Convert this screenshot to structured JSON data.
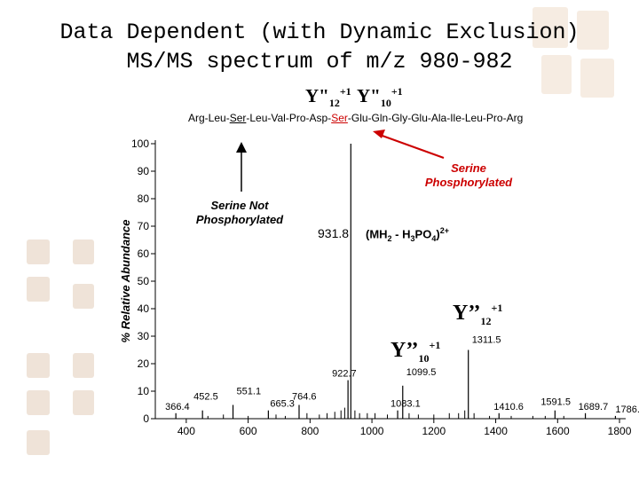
{
  "title_line1": "Data Dependent (with Dynamic Exclusion)",
  "title_line2": "MS/MS spectrum of m/z 980-982",
  "header_ions": {
    "y12": {
      "base": "Y\"",
      "sub": "12",
      "sup": "+1"
    },
    "y10": {
      "base": "Y\"",
      "sub": "10",
      "sup": "+1"
    }
  },
  "sequence": {
    "part1": "Arg-Leu-",
    "ser1": "Ser",
    "part2": "-Leu-Val-Pro-Asp-",
    "ser2": "Ser",
    "part3": "-Glu-Gln-Gly-Glu-Ala-Ile-Leu-Pro-Arg"
  },
  "annotations": {
    "not_phospho": "Serine Not Phosphorylated",
    "phospho": "Serine Phosphorylated",
    "precursor_value": "931.8",
    "precursor_formula": {
      "prefix": "(MH",
      "sub1": "2",
      "mid": " - H",
      "sub2": "3",
      "mid2": "PO",
      "sub3": "4",
      "suffix": ")",
      "sup": "2+"
    },
    "y12_label": {
      "base": "Y’’",
      "sub": "12",
      "sup": "+1"
    },
    "y10_label": {
      "base": "Y’’",
      "sub": "10",
      "sup": "+1"
    }
  },
  "colors": {
    "highlight": "#cc0000",
    "peaks": "#000000"
  },
  "chart_data": {
    "type": "bar",
    "title": "Data Dependent (with Dynamic Exclusion) MS/MS spectrum of m/z 980-982",
    "xlabel": "",
    "ylabel": "% Relative Abundance",
    "xlim": [
      300,
      1820
    ],
    "ylim": [
      0,
      100
    ],
    "xticks": [
      400,
      600,
      800,
      1000,
      1200,
      1400,
      1600,
      1800
    ],
    "yticks": [
      0,
      10,
      20,
      30,
      40,
      50,
      60,
      70,
      80,
      90,
      100
    ],
    "peaks": [
      {
        "mz": 366.4,
        "intensity": 2,
        "label": "366.4"
      },
      {
        "mz": 452.5,
        "intensity": 3,
        "label": "452.5"
      },
      {
        "mz": 551.1,
        "intensity": 5,
        "label": "551.1"
      },
      {
        "mz": 665.3,
        "intensity": 3,
        "label": "665.3"
      },
      {
        "mz": 764.6,
        "intensity": 5,
        "label": "764.6"
      },
      {
        "mz": 922.7,
        "intensity": 14,
        "label": "922.7"
      },
      {
        "mz": 931.8,
        "intensity": 100,
        "label": "931.8"
      },
      {
        "mz": 1083.1,
        "intensity": 3,
        "label": "1083.1"
      },
      {
        "mz": 1099.5,
        "intensity": 12,
        "label": "1099.5"
      },
      {
        "mz": 1311.5,
        "intensity": 25,
        "label": "1311.5"
      },
      {
        "mz": 1410.6,
        "intensity": 2,
        "label": "1410.6"
      },
      {
        "mz": 1591.5,
        "intensity": 3,
        "label": "1591.5"
      },
      {
        "mz": 1689.7,
        "intensity": 2,
        "label": "1689.7"
      },
      {
        "mz": 1786.8,
        "intensity": 1,
        "label": "1786.8"
      }
    ],
    "minor_peaks": [
      {
        "mz": 470,
        "intensity": 1
      },
      {
        "mz": 520,
        "intensity": 1.5
      },
      {
        "mz": 600,
        "intensity": 1
      },
      {
        "mz": 690,
        "intensity": 1.5
      },
      {
        "mz": 720,
        "intensity": 1
      },
      {
        "mz": 790,
        "intensity": 2
      },
      {
        "mz": 830,
        "intensity": 1.5
      },
      {
        "mz": 855,
        "intensity": 2
      },
      {
        "mz": 880,
        "intensity": 2.5
      },
      {
        "mz": 900,
        "intensity": 3
      },
      {
        "mz": 912,
        "intensity": 4
      },
      {
        "mz": 945,
        "intensity": 3
      },
      {
        "mz": 960,
        "intensity": 2
      },
      {
        "mz": 985,
        "intensity": 2
      },
      {
        "mz": 1010,
        "intensity": 2
      },
      {
        "mz": 1050,
        "intensity": 1.5
      },
      {
        "mz": 1120,
        "intensity": 2
      },
      {
        "mz": 1150,
        "intensity": 1.5
      },
      {
        "mz": 1200,
        "intensity": 1.5
      },
      {
        "mz": 1250,
        "intensity": 2
      },
      {
        "mz": 1280,
        "intensity": 2
      },
      {
        "mz": 1300,
        "intensity": 3
      },
      {
        "mz": 1330,
        "intensity": 2
      },
      {
        "mz": 1380,
        "intensity": 1
      },
      {
        "mz": 1450,
        "intensity": 1
      },
      {
        "mz": 1520,
        "intensity": 1
      },
      {
        "mz": 1560,
        "intensity": 1
      },
      {
        "mz": 1620,
        "intensity": 1
      }
    ]
  }
}
